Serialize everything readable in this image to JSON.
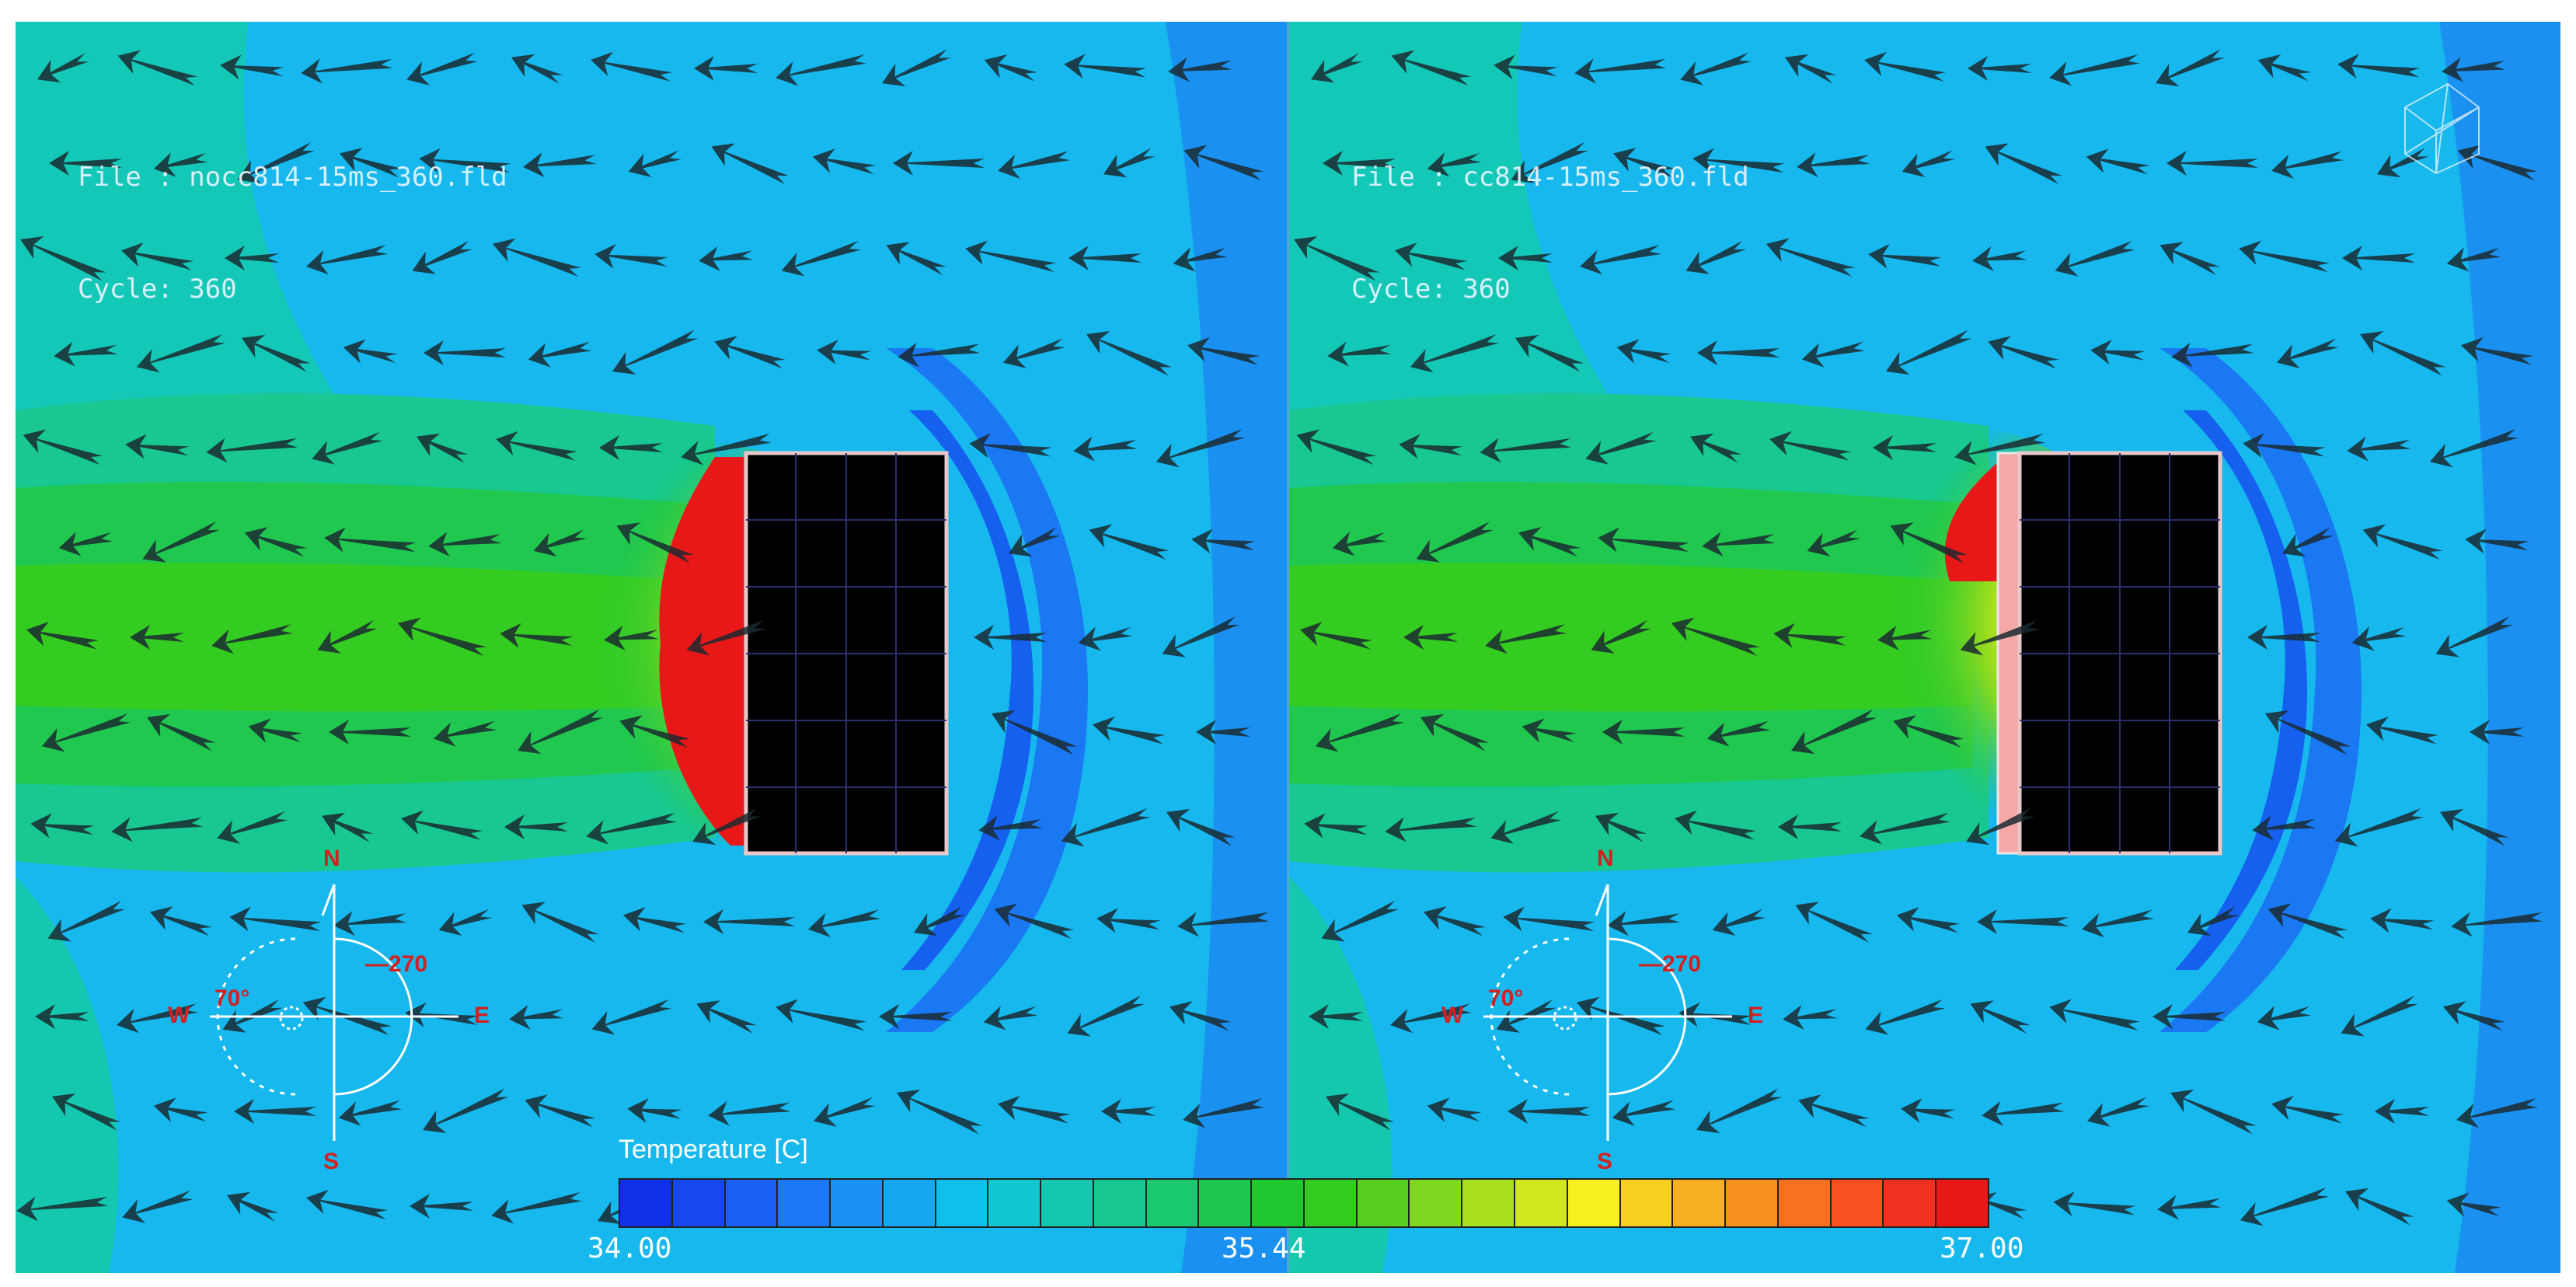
{
  "left_panel": {
    "file_line": "File : nocc814-15ms_360.fld",
    "cycle_line": "Cycle: 360"
  },
  "right_panel": {
    "file_line": "File : cc814-15ms_360.fld",
    "cycle_line": "Cycle: 360"
  },
  "compass": {
    "north": "N",
    "south": "S",
    "east": "E",
    "west": "W",
    "angle_left": "70°",
    "angle_right": "—270"
  },
  "colorbar": {
    "title": "Temperature [C]",
    "min_label": "34.00",
    "mid_label": "35.44",
    "max_label": "37.00",
    "colors": [
      "#1030e8",
      "#1548f0",
      "#1a60f5",
      "#1c78f5",
      "#1a90f2",
      "#16a8ee",
      "#10c0ea",
      "#12c8d0",
      "#14c8b0",
      "#16c890",
      "#1ac870",
      "#1ec850",
      "#20c830",
      "#34cc20",
      "#58d020",
      "#80d820",
      "#a8e020",
      "#d0e820",
      "#f8f020",
      "#f8d020",
      "#f8b020",
      "#f89020",
      "#f87020",
      "#f85020",
      "#f03020",
      "#e81818"
    ],
    "accent_color": "#e81818"
  },
  "icons": {
    "logo": "wireframe-cube-icon",
    "compass": "compass-rose-icon"
  }
}
